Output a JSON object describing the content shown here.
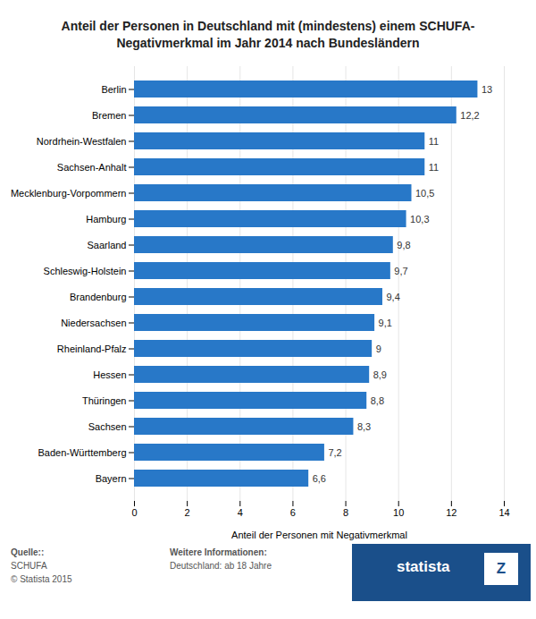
{
  "chart_data": {
    "type": "bar",
    "orientation": "horizontal",
    "title": "Anteil der Personen in Deutschland mit (mindestens) einem SCHUFA-\nNegativmerkmal im Jahr 2014 nach Bundesländern",
    "categories": [
      "Bayern",
      "Baden-Württemberg",
      "Sachsen",
      "Thüringen",
      "Hessen",
      "Rheinland-Pfalz",
      "Niedersachsen",
      "Brandenburg",
      "Schleswig-Holstein",
      "Saarland",
      "Hamburg",
      "Mecklenburg-Vorpommern",
      "Sachsen-Anhalt",
      "Nordrhein-Westfalen",
      "Bremen",
      "Berlin"
    ],
    "values": [
      6.6,
      7.2,
      8.3,
      8.8,
      8.9,
      9.0,
      9.1,
      9.4,
      9.7,
      9.8,
      10.3,
      10.5,
      11.0,
      11.0,
      12.2,
      13.0
    ],
    "value_labels": [
      "6,6",
      "7,2",
      "8,3",
      "8,8",
      "8,9",
      "9",
      "9,1",
      "9,4",
      "9,7",
      "9,8",
      "10,3",
      "10,5",
      "11",
      "11",
      "12,2",
      "13"
    ],
    "data_labels": true,
    "color": "#2878c8",
    "xlabel": "Anteil der Personen mit Negativmerkmal",
    "xlim": [
      0,
      14
    ],
    "xticks": [
      0,
      2,
      4,
      6,
      8,
      10,
      12,
      14
    ],
    "grid": true,
    "annotations": [
      "Quelle::",
      "SCHUFA\n© Statista 2015",
      "Weitere Informationen:",
      "Deutschland: ab 18 Jahre",
      "statista",
      "Z"
    ]
  }
}
